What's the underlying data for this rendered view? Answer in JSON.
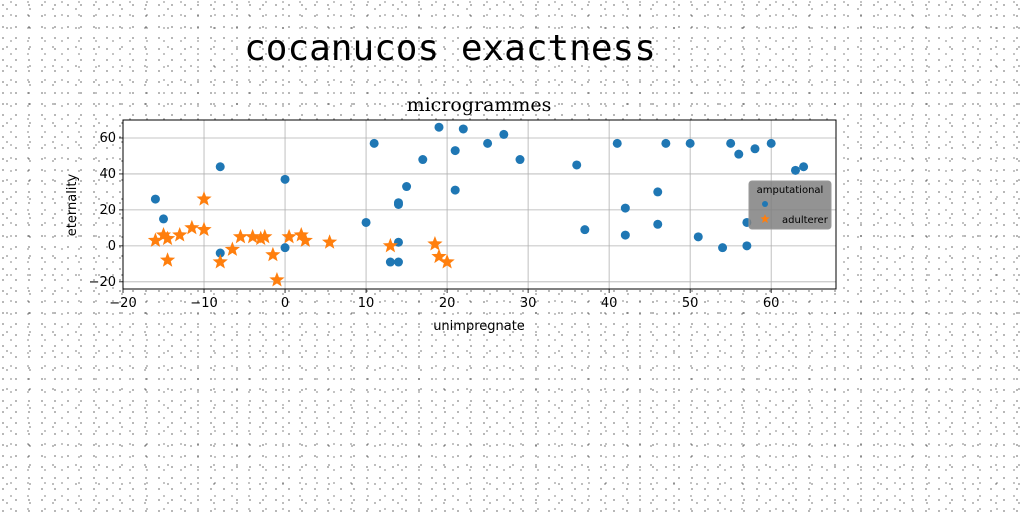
{
  "page": {
    "suptitle": "cocanucos exactness"
  },
  "chart_data": {
    "type": "scatter",
    "title": "microgrammes",
    "xlabel": "unimpregnate",
    "ylabel": "eternality",
    "xlim": [
      -20,
      68
    ],
    "ylim": [
      -24,
      70
    ],
    "xticks": [
      -20,
      -10,
      0,
      10,
      20,
      30,
      40,
      50,
      60
    ],
    "yticks": [
      -20,
      0,
      20,
      40,
      60
    ],
    "grid": true,
    "legend": {
      "title": "amputational",
      "placement": "right",
      "background": "#808080",
      "entries": [
        "",
        "adulterer"
      ]
    },
    "series": [
      {
        "name": "",
        "marker": "circle",
        "color": "#1f77b4",
        "points": [
          [
            -16,
            26
          ],
          [
            -15,
            15
          ],
          [
            -8,
            44
          ],
          [
            -8,
            -4
          ],
          [
            0,
            37
          ],
          [
            0,
            -1
          ],
          [
            10,
            13
          ],
          [
            11,
            57
          ],
          [
            13,
            -9
          ],
          [
            14,
            -9
          ],
          [
            14,
            2
          ],
          [
            14,
            23
          ],
          [
            14,
            24
          ],
          [
            15,
            33
          ],
          [
            17,
            48
          ],
          [
            19,
            66
          ],
          [
            21,
            53
          ],
          [
            21,
            31
          ],
          [
            22,
            65
          ],
          [
            25,
            57
          ],
          [
            27,
            62
          ],
          [
            29,
            48
          ],
          [
            36,
            45
          ],
          [
            37,
            9
          ],
          [
            41,
            57
          ],
          [
            42,
            21
          ],
          [
            42,
            6
          ],
          [
            46,
            12
          ],
          [
            46,
            30
          ],
          [
            47,
            57
          ],
          [
            50,
            57
          ],
          [
            51,
            5
          ],
          [
            54,
            -1
          ],
          [
            55,
            57
          ],
          [
            56,
            51
          ],
          [
            57,
            13
          ],
          [
            57,
            0
          ],
          [
            58,
            54
          ],
          [
            60,
            57
          ],
          [
            63,
            42
          ],
          [
            64,
            44
          ]
        ]
      },
      {
        "name": "adulterer",
        "marker": "star",
        "color": "#ff7f0e",
        "points": [
          [
            -16,
            3
          ],
          [
            -15,
            6
          ],
          [
            -14.5,
            -8
          ],
          [
            -14.5,
            4
          ],
          [
            -13,
            6
          ],
          [
            -11.5,
            10
          ],
          [
            -10,
            26
          ],
          [
            -10,
            9
          ],
          [
            -8,
            -9
          ],
          [
            -6.5,
            -2
          ],
          [
            -5.5,
            5
          ],
          [
            -4,
            5
          ],
          [
            -3,
            4
          ],
          [
            -2.5,
            5
          ],
          [
            -1.5,
            -5
          ],
          [
            -1,
            -19
          ],
          [
            0.5,
            5
          ],
          [
            2,
            6
          ],
          [
            2.5,
            3
          ],
          [
            5.5,
            2
          ],
          [
            13,
            0
          ],
          [
            18.5,
            1
          ],
          [
            19,
            -6
          ],
          [
            20,
            -9
          ]
        ]
      }
    ]
  }
}
